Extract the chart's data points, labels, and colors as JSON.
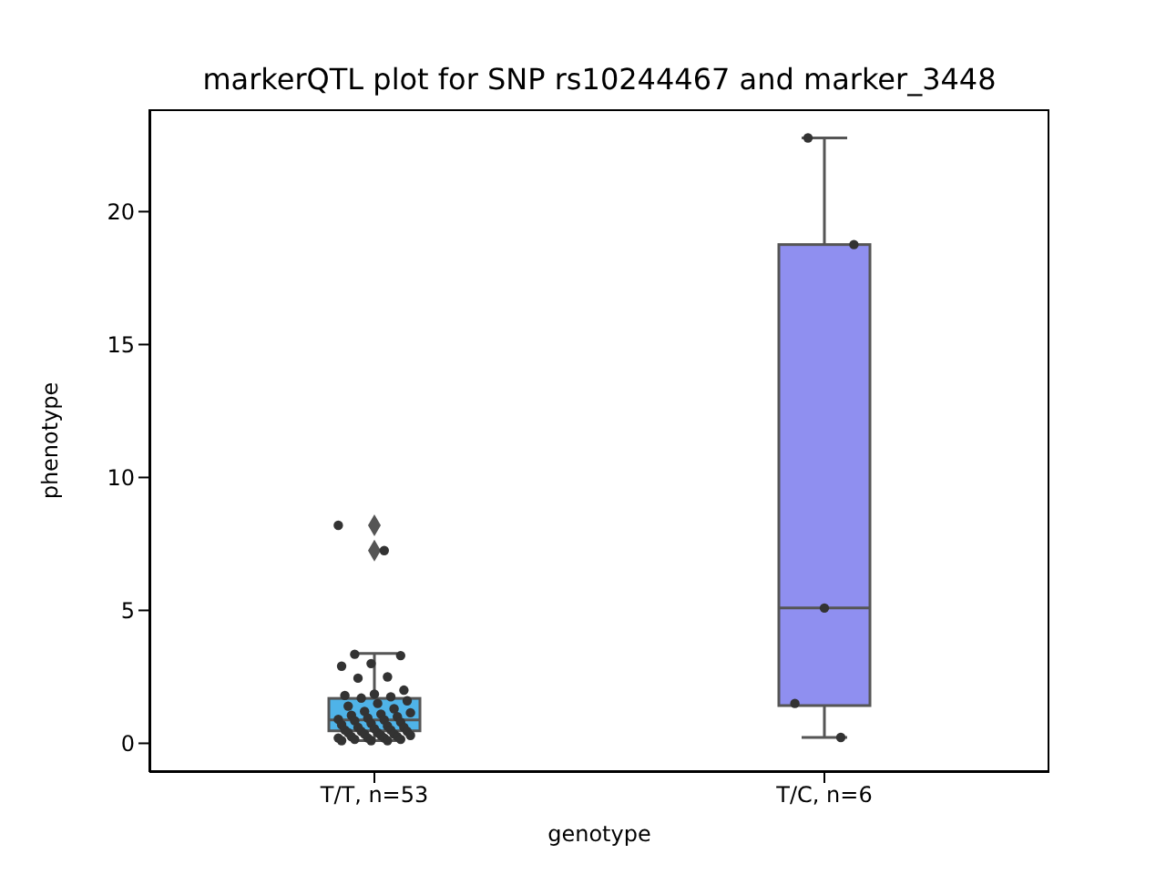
{
  "chart_data": {
    "type": "box",
    "title": "markerQTL plot for SNP rs10244467 and marker_3448",
    "xlabel": "genotype",
    "ylabel": "phenotype",
    "categories": [
      "T/T, n=53",
      "T/C, n=6"
    ],
    "ylim": [
      -1.08,
      23.85
    ],
    "yticks": [
      0,
      5,
      10,
      15,
      20
    ],
    "grid": false,
    "legend": false,
    "series": [
      {
        "colors": [
          "#4fb3e8",
          "#8f8ff0"
        ],
        "boxes": [
          {
            "low": 0.1,
            "q1": 0.47,
            "median": 0.88,
            "q3": 1.69,
            "high": 3.38,
            "outliers": [
              8.2,
              7.25
            ]
          },
          {
            "low": 0.22,
            "q1": 1.42,
            "median": 5.09,
            "q3": 18.76,
            "high": 22.77
          }
        ]
      },
      {
        "type": "scatter",
        "color": "#333333",
        "marker": "circle",
        "x": [
          "T/T, n=53",
          "T/T, n=53",
          "T/T, n=53",
          "T/T, n=53",
          "T/T, n=53",
          "T/T, n=53",
          "T/T, n=53",
          "T/T, n=53",
          "T/T, n=53",
          "T/T, n=53",
          "T/T, n=53",
          "T/T, n=53",
          "T/T, n=53",
          "T/T, n=53",
          "T/T, n=53",
          "T/T, n=53",
          "T/T, n=53",
          "T/T, n=53",
          "T/T, n=53",
          "T/T, n=53",
          "T/T, n=53",
          "T/T, n=53",
          "T/T, n=53",
          "T/T, n=53",
          "T/T, n=53",
          "T/T, n=53",
          "T/T, n=53",
          "T/T, n=53",
          "T/T, n=53",
          "T/T, n=53",
          "T/T, n=53",
          "T/T, n=53",
          "T/T, n=53",
          "T/T, n=53",
          "T/T, n=53",
          "T/T, n=53",
          "T/T, n=53",
          "T/T, n=53",
          "T/T, n=53",
          "T/T, n=53",
          "T/T, n=53",
          "T/T, n=53",
          "T/T, n=53",
          "T/T, n=53",
          "T/T, n=53",
          "T/T, n=53",
          "T/T, n=53",
          "T/T, n=53",
          "T/T, n=53",
          "T/T, n=53",
          "T/T, n=53",
          "T/T, n=53",
          "T/T, n=53",
          "T/C, n=6",
          "T/C, n=6",
          "T/C, n=6",
          "T/C, n=6",
          "T/C, n=6"
        ],
        "values": [
          8.2,
          7.25,
          3.35,
          3.3,
          3.0,
          2.9,
          2.5,
          2.45,
          2.0,
          1.85,
          1.8,
          1.75,
          1.7,
          1.6,
          1.5,
          1.4,
          1.3,
          1.2,
          1.15,
          1.1,
          1.05,
          1.0,
          0.95,
          0.9,
          0.88,
          0.85,
          0.8,
          0.75,
          0.7,
          0.65,
          0.6,
          0.6,
          0.55,
          0.5,
          0.5,
          0.45,
          0.45,
          0.4,
          0.4,
          0.35,
          0.35,
          0.3,
          0.3,
          0.25,
          0.25,
          0.2,
          0.2,
          0.2,
          0.15,
          0.15,
          0.1,
          0.1,
          0.1,
          22.77,
          18.76,
          5.09,
          1.5,
          0.22
        ]
      }
    ]
  }
}
